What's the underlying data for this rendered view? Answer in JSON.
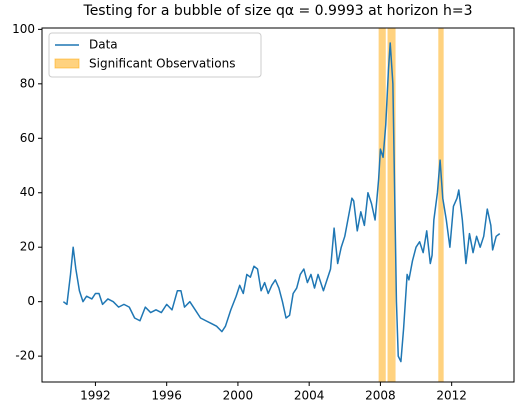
{
  "chart_data": {
    "type": "line",
    "title": "Testing for a bubble of size qα = 0.9993 at horizon h=3",
    "x": [
      1990.2,
      1990.4,
      1990.6,
      1990.75,
      1990.9,
      1991.1,
      1991.3,
      1991.5,
      1991.8,
      1992.0,
      1992.2,
      1992.4,
      1992.7,
      1993.0,
      1993.3,
      1993.6,
      1993.9,
      1994.2,
      1994.5,
      1994.8,
      1995.1,
      1995.4,
      1995.7,
      1996.0,
      1996.3,
      1996.6,
      1996.8,
      1997.0,
      1997.3,
      1997.6,
      1997.9,
      1998.2,
      1998.5,
      1998.8,
      1999.1,
      1999.3,
      1999.6,
      1999.9,
      2000.1,
      2000.3,
      2000.5,
      2000.7,
      2000.9,
      2001.1,
      2001.3,
      2001.5,
      2001.7,
      2001.9,
      2002.1,
      2002.3,
      2002.5,
      2002.7,
      2002.9,
      2003.1,
      2003.3,
      2003.5,
      2003.7,
      2003.9,
      2004.1,
      2004.3,
      2004.5,
      2004.8,
      2005.0,
      2005.2,
      2005.4,
      2005.6,
      2005.8,
      2006.0,
      2006.2,
      2006.4,
      2006.5,
      2006.7,
      2006.9,
      2007.1,
      2007.3,
      2007.5,
      2007.7,
      2007.9,
      2008.0,
      2008.15,
      2008.3,
      2008.45,
      2008.55,
      2008.7,
      2008.8,
      2008.9,
      2009.0,
      2009.15,
      2009.3,
      2009.5,
      2009.6,
      2009.8,
      2010.0,
      2010.2,
      2010.4,
      2010.6,
      2010.8,
      2010.9,
      2011.0,
      2011.2,
      2011.35,
      2011.5,
      2011.7,
      2011.9,
      2012.1,
      2012.3,
      2012.4,
      2012.6,
      2012.8,
      2013.0,
      2013.2,
      2013.4,
      2013.6,
      2013.8,
      2014.0,
      2014.2,
      2014.3,
      2014.5,
      2014.7
    ],
    "series": [
      {
        "name": "Data",
        "color": "#1f77b4",
        "values": [
          0,
          -1,
          10,
          20,
          12,
          4,
          0,
          2,
          1,
          3,
          3,
          -1,
          1,
          0,
          -2,
          -1,
          -2,
          -6,
          -7,
          -2,
          -4,
          -3,
          -4,
          -1,
          -3,
          4,
          4,
          -2,
          0,
          -3,
          -6,
          -7,
          -8,
          -9,
          -11,
          -9,
          -3,
          2,
          6,
          3,
          10,
          9,
          13,
          12,
          4,
          7,
          3,
          6,
          8,
          5,
          0,
          -6,
          -5,
          3,
          5,
          10,
          12,
          7,
          10,
          5,
          10,
          4,
          8,
          12,
          27,
          14,
          20,
          24,
          31,
          38,
          37,
          26,
          33,
          28,
          40,
          36,
          30,
          45,
          56,
          53,
          65,
          85,
          95,
          80,
          40,
          0,
          -20,
          -22,
          -10,
          10,
          8,
          15,
          20,
          22,
          18,
          26,
          14,
          17,
          30,
          40,
          52,
          38,
          30,
          20,
          35,
          38,
          41,
          30,
          14,
          25,
          18,
          24,
          20,
          24,
          34,
          28,
          19,
          24,
          25
        ]
      }
    ],
    "spans_name": "Significant Observations",
    "spans_color": "#ffa500",
    "spans": [
      [
        2007.9,
        2008.3
      ],
      [
        2008.4,
        2008.85
      ],
      [
        2011.25,
        2011.55
      ]
    ],
    "xlim": [
      1989.0,
      2015.5
    ],
    "ylim": [
      -29.5,
      100.5
    ],
    "xticks": [
      1992,
      1996,
      2000,
      2004,
      2008,
      2012
    ],
    "yticks": [
      -20,
      0,
      20,
      40,
      60,
      80,
      100
    ],
    "legend": "upper-left"
  }
}
